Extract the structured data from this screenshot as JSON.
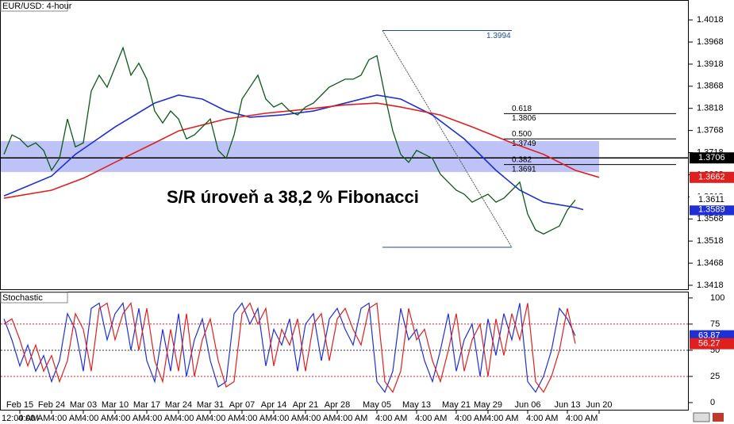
{
  "chart_data": [
    {
      "type": "line",
      "title": "EUR/USD: 4-hour",
      "categories": [
        null,
        null,
        "Feb 15",
        null,
        null,
        null,
        "Feb 24",
        null,
        null,
        null,
        "Mar 03",
        null,
        null,
        null,
        "Mar 10",
        null,
        null,
        null,
        "Mar 17",
        null,
        null,
        null,
        "Mar 24",
        null,
        null,
        null,
        "Mar 31",
        null,
        null,
        null,
        "Apr 07",
        null,
        null,
        null,
        "Apr 14",
        null,
        null,
        null,
        "Apr 21",
        null,
        null,
        null,
        "Apr 28",
        null,
        null,
        null,
        null,
        "May 05",
        null,
        null,
        null,
        null,
        "May 13",
        null,
        null,
        null,
        null,
        "May 21",
        null,
        null,
        null,
        "May 29",
        null,
        null,
        null,
        null,
        "Jun 06",
        null,
        null,
        null,
        null,
        "Jun 13",
        null,
        null,
        null,
        "Jun 20"
      ],
      "time_labels": [
        "12:00 AM",
        "4:00 AM",
        "4:00 AM",
        "4:00 AM",
        "4:00 AM",
        "4:00 AM",
        "4:00 AM",
        "4:00 AM",
        "4:00 AM",
        "4:00 AM",
        "4:00 AM",
        "4:00 AM",
        "4:00 AM",
        "4:00 AM",
        "4:00 AM",
        "4:00 AM",
        "4:00 AM",
        "4:00 AM"
      ],
      "series": [
        {
          "color": "#0c5a17",
          "values": [
            1.3714,
            1.3758,
            1.3749,
            1.3731,
            1.374,
            1.3723,
            1.3678,
            1.3705,
            1.3794,
            1.3731,
            1.374,
            1.3857,
            1.3893,
            1.3866,
            1.3911,
            1.3955,
            1.3893,
            1.392,
            1.3884,
            1.3812,
            1.3785,
            1.3812,
            1.3794,
            1.3749,
            1.3758,
            1.3776,
            1.3794,
            1.3723,
            1.3705,
            1.3758,
            1.3839,
            1.3866,
            1.3893,
            1.3839,
            1.3821,
            1.383,
            1.3812,
            1.3803,
            1.3821,
            1.383,
            1.3848,
            1.3866,
            1.3875,
            1.3884,
            1.3884,
            1.3893,
            1.3928,
            1.3937,
            1.3848,
            1.3767,
            1.3714,
            1.3696,
            1.3723,
            1.3714,
            1.3705,
            1.3669,
            1.3651,
            1.3633,
            1.3624,
            1.3606,
            1.3615,
            1.3624,
            1.3606,
            1.3615,
            1.3633,
            1.3651,
            1.3579,
            1.3543,
            1.3534,
            1.3543,
            1.3552,
            1.3588,
            1.3611,
            null,
            null,
            null
          ]
        }
      ],
      "moving_averages": [
        {
          "color": "#1f2fd6",
          "x": [
            0,
            6,
            9,
            14,
            19,
            22,
            25,
            28,
            31,
            35,
            39,
            43,
            47,
            50,
            54,
            58,
            62,
            65,
            68,
            72,
            73
          ],
          "values": [
            1.362,
            1.3665,
            1.3714,
            1.3776,
            1.383,
            1.3848,
            1.3839,
            1.3812,
            1.3798,
            1.3803,
            1.3812,
            1.383,
            1.3848,
            1.3839,
            1.3803,
            1.3749,
            1.3678,
            1.3633,
            1.3606,
            1.3594,
            1.3589
          ]
        },
        {
          "color": "#e01f1f",
          "x": [
            0,
            6,
            10,
            14,
            19,
            22,
            28,
            33,
            38,
            43,
            47,
            50,
            55,
            59,
            64,
            68,
            72,
            75
          ],
          "values": [
            1.3615,
            1.3633,
            1.366,
            1.3696,
            1.374,
            1.3767,
            1.3794,
            1.3807,
            1.3816,
            1.3826,
            1.383,
            1.3821,
            1.3803,
            1.3776,
            1.374,
            1.3714,
            1.3678,
            1.3662
          ]
        }
      ],
      "ylim": [
        1.3409,
        1.4063
      ],
      "yticks": [
        1.4018,
        1.3968,
        1.3918,
        1.3868,
        1.3818,
        1.3768,
        1.3718,
        1.3668,
        1.3618,
        1.3568,
        1.3518,
        1.3468,
        1.3418
      ],
      "sr_zone": [
        1.3674,
        1.3744
      ],
      "sr_zone_color": "#aeb4f5",
      "sr_level": 1.3706,
      "fibonacci": {
        "x": [
          47.7,
          64
        ],
        "start": 1.3994,
        "end": 1.3504,
        "color": "#1f4e99",
        "levels": [
          {
            "ratio": 0.618,
            "price": 1.3806
          },
          {
            "ratio": {
              "value": 0.5,
              "label": "0.500"
            },
            "price": 1.3749
          },
          {
            "ratio": 0.382,
            "price": 1.3691
          }
        ]
      },
      "annotation": "S/R úroveň a 38,2 % Fibonacci"
    },
    {
      "type": "line",
      "title": "Stochastic",
      "series": [
        {
          "color": "#1f2fd6",
          "values": [
            80,
            60,
            35,
            55,
            30,
            45,
            20,
            40,
            85,
            70,
            30,
            90,
            95,
            60,
            85,
            95,
            50,
            90,
            40,
            20,
            70,
            30,
            85,
            25,
            60,
            80,
            40,
            15,
            20,
            85,
            95,
            75,
            90,
            35,
            70,
            55,
            80,
            30,
            75,
            85,
            40,
            80,
            90,
            70,
            55,
            90,
            95,
            20,
            10,
            30,
            90,
            60,
            70,
            40,
            20,
            50,
            85,
            30,
            60,
            75,
            25,
            80,
            45,
            85,
            60,
            95,
            20,
            10,
            25,
            50,
            90,
            80,
            63.87,
            null,
            null,
            null
          ]
        },
        {
          "color": "#e01f1f",
          "values": [
            75,
            80,
            60,
            35,
            55,
            30,
            45,
            20,
            40,
            85,
            70,
            30,
            90,
            95,
            60,
            85,
            95,
            50,
            90,
            40,
            20,
            70,
            30,
            85,
            25,
            60,
            80,
            40,
            15,
            20,
            85,
            95,
            75,
            90,
            35,
            70,
            55,
            80,
            30,
            75,
            85,
            40,
            80,
            90,
            70,
            55,
            90,
            95,
            20,
            10,
            30,
            90,
            60,
            70,
            40,
            20,
            50,
            85,
            30,
            60,
            75,
            25,
            80,
            45,
            85,
            60,
            95,
            20,
            10,
            25,
            50,
            90,
            56.27,
            null,
            null,
            null
          ]
        }
      ],
      "ylim": [
        -7.6,
        106
      ],
      "yticks": [
        0,
        25,
        50,
        75,
        100
      ],
      "levels": [
        {
          "value": 75,
          "color": "#e01f1f"
        },
        {
          "value": 50,
          "color": "#333333"
        },
        {
          "value": 25,
          "color": "#e01f1f"
        }
      ]
    }
  ]
}
